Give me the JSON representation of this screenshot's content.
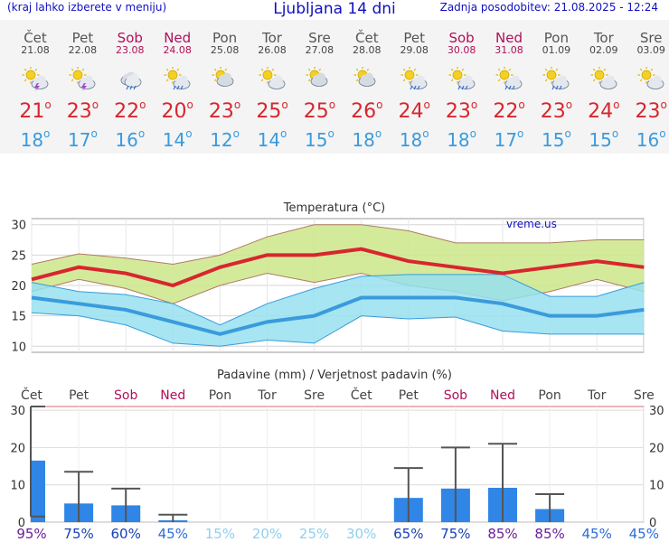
{
  "header": {
    "menu_hint": "(kraj lahko izberete v meniju)",
    "title": "Ljubljana 14 dni",
    "updated": "Zadnja posodobitev: 21.08.2025 - 12:24"
  },
  "days": [
    {
      "name": "Čet",
      "date": "21.08",
      "weekend": false,
      "icon": "sun-cloud-thunder-icon",
      "tmax": "21",
      "tmin": "18"
    },
    {
      "name": "Pet",
      "date": "22.08",
      "weekend": false,
      "icon": "sun-cloud-thunder-icon",
      "tmax": "23",
      "tmin": "17"
    },
    {
      "name": "Sob",
      "date": "23.08",
      "weekend": true,
      "icon": "cloud-rain-icon",
      "tmax": "22",
      "tmin": "16"
    },
    {
      "name": "Ned",
      "date": "24.08",
      "weekend": true,
      "icon": "sun-cloud-rain-icon",
      "tmax": "20",
      "tmin": "14"
    },
    {
      "name": "Pon",
      "date": "25.08",
      "weekend": false,
      "icon": "cloud-sun-icon",
      "tmax": "23",
      "tmin": "12"
    },
    {
      "name": "Tor",
      "date": "26.08",
      "weekend": false,
      "icon": "sun-cloud-icon",
      "tmax": "25",
      "tmin": "14"
    },
    {
      "name": "Sre",
      "date": "27.08",
      "weekend": false,
      "icon": "cloud-sun-icon",
      "tmax": "25",
      "tmin": "15"
    },
    {
      "name": "Čet",
      "date": "28.08",
      "weekend": false,
      "icon": "cloud-sun-icon",
      "tmax": "26",
      "tmin": "18"
    },
    {
      "name": "Pet",
      "date": "29.08",
      "weekend": false,
      "icon": "sun-cloud-rain-icon",
      "tmax": "24",
      "tmin": "18"
    },
    {
      "name": "Sob",
      "date": "30.08",
      "weekend": true,
      "icon": "sun-cloud-rain-icon",
      "tmax": "23",
      "tmin": "18"
    },
    {
      "name": "Ned",
      "date": "31.08",
      "weekend": true,
      "icon": "sun-cloud-rain-icon",
      "tmax": "22",
      "tmin": "17"
    },
    {
      "name": "Pon",
      "date": "01.09",
      "weekend": false,
      "icon": "sun-cloud-rain-icon",
      "tmax": "23",
      "tmin": "15"
    },
    {
      "name": "Tor",
      "date": "02.09",
      "weekend": false,
      "icon": "sun-cloud-icon",
      "tmax": "24",
      "tmin": "15"
    },
    {
      "name": "Sre",
      "date": "03.09",
      "weekend": false,
      "icon": "sun-cloud-icon",
      "tmax": "23",
      "tmin": "16"
    }
  ],
  "colors": {
    "title_blue": "#1010c0",
    "weekend": "#b0105a",
    "tmax": "#d8262e",
    "tmin": "#3a9bdc",
    "tmax_band": "#cde68a",
    "tmin_band": "#96e0ef",
    "precip_bar": "#2f86e6"
  },
  "chart_data": [
    {
      "type": "line",
      "title": "Temperatura (°C)",
      "watermark": "vreme.us",
      "categories": [
        "21.08",
        "22.08",
        "23.08",
        "24.08",
        "25.08",
        "26.08",
        "27.08",
        "28.08",
        "29.08",
        "30.08",
        "31.08",
        "01.09",
        "02.09",
        "03.09"
      ],
      "ylim": [
        9,
        31
      ],
      "yticks": [
        10,
        15,
        20,
        25,
        30
      ],
      "grid": true,
      "series": [
        {
          "key": "tmax",
          "values": [
            21,
            23,
            22,
            20,
            23,
            25,
            25,
            26,
            24,
            23,
            22,
            23,
            24,
            23
          ]
        },
        {
          "key": "tmax_band_high",
          "values": [
            23.5,
            25.2,
            24.5,
            23.5,
            25,
            28,
            30,
            30,
            29,
            27,
            27,
            27,
            27.5,
            27.5
          ]
        },
        {
          "key": "tmax_band_low",
          "values": [
            19,
            21,
            19.5,
            17,
            20,
            22,
            20.5,
            22,
            20,
            19,
            17.5,
            19,
            21,
            19
          ]
        },
        {
          "key": "tmin",
          "values": [
            18,
            17,
            16,
            14,
            12,
            14,
            15,
            18,
            18,
            18,
            17,
            15,
            15,
            16
          ]
        },
        {
          "key": "tmin_band_high",
          "values": [
            20.5,
            19,
            18.5,
            17,
            13.5,
            17,
            19.5,
            21.5,
            21.8,
            21.8,
            21.8,
            18.2,
            18.2,
            20.5
          ]
        },
        {
          "key": "tmin_band_low",
          "values": [
            15.5,
            15,
            13.5,
            10.5,
            10,
            11,
            10.5,
            15,
            14.5,
            14.8,
            12.5,
            12,
            12,
            12
          ]
        }
      ]
    },
    {
      "type": "bar",
      "title": "Padavine (mm) / Verjetnost padavin (%)",
      "categories": [
        "Čet",
        "Pet",
        "Sob",
        "Ned",
        "Pon",
        "Tor",
        "Sre",
        "Čet",
        "Pet",
        "Sob",
        "Ned",
        "Pon",
        "Tor",
        "Sre"
      ],
      "values": [
        16.5,
        5,
        4.5,
        0.5,
        0,
        0,
        0,
        0,
        6.5,
        9,
        9.2,
        3.5,
        0,
        0
      ],
      "error_high": [
        31,
        13.5,
        9,
        2,
        0,
        0,
        0,
        0,
        14.5,
        20,
        21,
        7.5,
        0,
        0
      ],
      "error_low": [
        1.5,
        0,
        0,
        0,
        0,
        0,
        0,
        0,
        0,
        0,
        0,
        0,
        0,
        0
      ],
      "probability": [
        "95%",
        "75%",
        "60%",
        "45%",
        "15%",
        "20%",
        "25%",
        "30%",
        "65%",
        "75%",
        "85%",
        "85%",
        "45%",
        "45%"
      ],
      "ylim": [
        0,
        31
      ],
      "yticks": [
        0,
        10,
        20,
        30
      ]
    }
  ]
}
